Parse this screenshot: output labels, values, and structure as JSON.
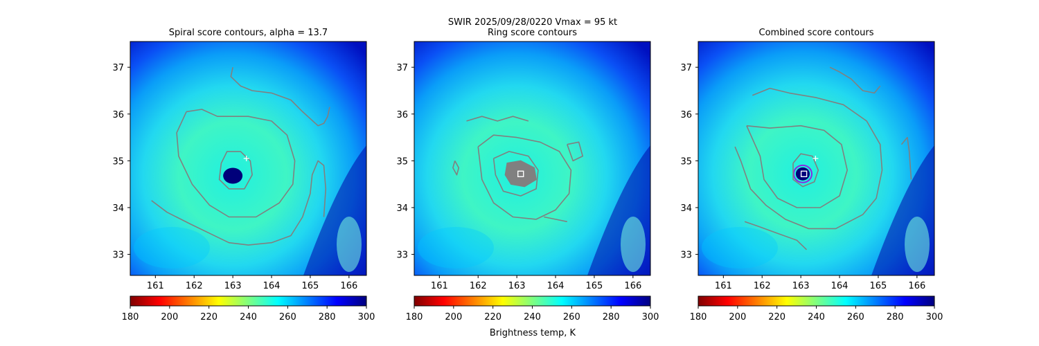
{
  "figure": {
    "suptitle": "SWIR  2025/09/28/0220    Vmax = 95 kt",
    "colorbar_label": "Brightness temp, K"
  },
  "colormap": {
    "name": "jet_r",
    "stops": [
      "#800000",
      "#ff0000",
      "#ffff00",
      "#00ffff",
      "#0000ff",
      "#000080"
    ],
    "contour_color": "#808080",
    "marker_color": "#ffffff"
  },
  "chart_data": [
    {
      "type": "heatmap",
      "title": "Spiral score contours, alpha = 13.7",
      "xlabel": "",
      "ylabel": "",
      "xlim": [
        160.35,
        166.45
      ],
      "ylim": [
        32.55,
        37.55
      ],
      "xticks": [
        "161",
        "162",
        "163",
        "164",
        "165",
        "166"
      ],
      "yticks": [
        "33",
        "34",
        "35",
        "36",
        "37"
      ],
      "colorbar": {
        "range": [
          180,
          300
        ],
        "ticks": [
          "180",
          "200",
          "220",
          "240",
          "260",
          "280",
          "300"
        ]
      },
      "eye_center": {
        "lon": 163.0,
        "lat": 34.68
      },
      "eye_shape": {
        "rlon": 0.25,
        "rlat": 0.17
      },
      "markers": [
        {
          "type": "plus",
          "lon": 163.35,
          "lat": 35.05
        }
      ],
      "contours": [
        [
          [
            163.0,
            37.0
          ],
          [
            162.95,
            36.8
          ],
          [
            163.2,
            36.6
          ],
          [
            163.5,
            36.5
          ],
          [
            164.0,
            36.45
          ],
          [
            164.5,
            36.3
          ],
          [
            164.8,
            36.05
          ],
          [
            165.2,
            35.75
          ],
          [
            165.35,
            35.8
          ],
          [
            165.45,
            35.95
          ],
          [
            165.5,
            36.15
          ]
        ],
        [
          [
            161.8,
            36.05
          ],
          [
            162.2,
            36.1
          ],
          [
            162.6,
            35.95
          ],
          [
            163.4,
            35.95
          ],
          [
            164.0,
            35.85
          ],
          [
            164.4,
            35.55
          ],
          [
            164.6,
            35.0
          ],
          [
            164.55,
            34.5
          ],
          [
            164.2,
            34.1
          ],
          [
            163.6,
            33.8
          ],
          [
            162.9,
            33.8
          ],
          [
            162.4,
            34.05
          ],
          [
            161.95,
            34.5
          ],
          [
            161.6,
            35.1
          ],
          [
            161.55,
            35.6
          ],
          [
            161.8,
            36.05
          ]
        ],
        [
          [
            162.7,
            34.95
          ],
          [
            162.85,
            35.2
          ],
          [
            163.2,
            35.2
          ],
          [
            163.45,
            35.0
          ],
          [
            163.5,
            34.7
          ],
          [
            163.3,
            34.4
          ],
          [
            162.9,
            34.4
          ],
          [
            162.65,
            34.6
          ],
          [
            162.7,
            34.95
          ]
        ],
        [
          [
            160.9,
            34.15
          ],
          [
            161.3,
            33.9
          ],
          [
            161.9,
            33.65
          ],
          [
            162.4,
            33.45
          ],
          [
            162.9,
            33.25
          ],
          [
            163.4,
            33.2
          ],
          [
            164.0,
            33.25
          ],
          [
            164.5,
            33.4
          ],
          [
            164.8,
            33.8
          ],
          [
            165.0,
            34.3
          ],
          [
            165.05,
            34.7
          ],
          [
            165.2,
            35.0
          ],
          [
            165.35,
            34.9
          ],
          [
            165.4,
            34.4
          ],
          [
            165.35,
            33.8
          ]
        ]
      ]
    },
    {
      "type": "heatmap",
      "title": "Ring score contours",
      "xlabel": "",
      "ylabel": "",
      "xlim": [
        160.35,
        166.45
      ],
      "ylim": [
        32.55,
        37.55
      ],
      "xticks": [
        "161",
        "162",
        "163",
        "164",
        "165",
        "166"
      ],
      "yticks": [
        "33",
        "34",
        "35",
        "36",
        "37"
      ],
      "colorbar": {
        "range": [
          180,
          300
        ],
        "ticks": [
          "180",
          "200",
          "220",
          "240",
          "260",
          "280",
          "300"
        ]
      },
      "eye_center": {
        "lon": 163.0,
        "lat": 34.68
      },
      "eye_shape": {
        "rlon": 0.25,
        "rlat": 0.17
      },
      "markers": [
        {
          "type": "square",
          "lon": 163.1,
          "lat": 34.72
        }
      ],
      "contours": [
        [
          [
            162.0,
            35.3
          ],
          [
            162.4,
            35.55
          ],
          [
            163.0,
            35.5
          ],
          [
            163.6,
            35.4
          ],
          [
            164.1,
            35.2
          ],
          [
            164.4,
            34.8
          ],
          [
            164.35,
            34.3
          ],
          [
            164.0,
            33.95
          ],
          [
            163.5,
            33.75
          ],
          [
            162.9,
            33.8
          ],
          [
            162.4,
            34.1
          ],
          [
            162.1,
            34.6
          ],
          [
            162.0,
            35.3
          ]
        ],
        [
          [
            162.4,
            35.05
          ],
          [
            162.8,
            35.2
          ],
          [
            163.3,
            35.1
          ],
          [
            163.55,
            34.8
          ],
          [
            163.5,
            34.4
          ],
          [
            163.1,
            34.25
          ],
          [
            162.65,
            34.35
          ],
          [
            162.45,
            34.7
          ],
          [
            162.4,
            35.05
          ]
        ],
        [
          [
            161.7,
            35.85
          ],
          [
            162.1,
            35.95
          ],
          [
            162.5,
            35.85
          ],
          [
            162.9,
            35.95
          ],
          [
            163.3,
            35.85
          ]
        ],
        [
          [
            163.7,
            33.8
          ],
          [
            164.0,
            33.75
          ],
          [
            164.3,
            33.7
          ]
        ],
        [
          [
            164.3,
            35.35
          ],
          [
            164.6,
            35.4
          ],
          [
            164.7,
            35.1
          ],
          [
            164.45,
            35.0
          ],
          [
            164.3,
            35.35
          ]
        ],
        [
          [
            161.4,
            35.0
          ],
          [
            161.5,
            34.85
          ],
          [
            161.45,
            34.7
          ],
          [
            161.35,
            34.85
          ],
          [
            161.4,
            35.0
          ]
        ]
      ],
      "filled_contours": [
        [
          [
            162.75,
            34.95
          ],
          [
            163.1,
            35.0
          ],
          [
            163.45,
            34.85
          ],
          [
            163.5,
            34.6
          ],
          [
            163.2,
            34.45
          ],
          [
            162.85,
            34.5
          ],
          [
            162.7,
            34.7
          ],
          [
            162.75,
            34.95
          ]
        ]
      ]
    },
    {
      "type": "heatmap",
      "title": "Combined score contours",
      "xlabel": "",
      "ylabel": "",
      "xlim": [
        160.35,
        166.45
      ],
      "ylim": [
        32.55,
        37.55
      ],
      "xticks": [
        "161",
        "162",
        "163",
        "164",
        "165",
        "166"
      ],
      "yticks": [
        "33",
        "34",
        "35",
        "36",
        "37"
      ],
      "colorbar": {
        "range": [
          180,
          300
        ],
        "ticks": [
          "180",
          "200",
          "220",
          "240",
          "260",
          "280",
          "300"
        ]
      },
      "eye_center": {
        "lon": 163.05,
        "lat": 34.72
      },
      "eye_shape": {
        "rlon": 0.18,
        "rlat": 0.14
      },
      "markers": [
        {
          "type": "plus",
          "lon": 163.38,
          "lat": 35.05
        },
        {
          "type": "square",
          "lon": 163.08,
          "lat": 34.72
        }
      ],
      "contours": [
        [
          [
            163.75,
            37.0
          ],
          [
            164.0,
            36.9
          ],
          [
            164.3,
            36.75
          ],
          [
            164.6,
            36.5
          ],
          [
            164.9,
            36.45
          ],
          [
            165.05,
            36.6
          ]
        ],
        [
          [
            161.75,
            36.4
          ],
          [
            162.2,
            36.55
          ],
          [
            162.7,
            36.45
          ],
          [
            163.4,
            36.35
          ],
          [
            164.1,
            36.2
          ],
          [
            164.7,
            35.85
          ],
          [
            165.05,
            35.35
          ],
          [
            165.1,
            34.8
          ],
          [
            164.95,
            34.2
          ],
          [
            164.6,
            33.85
          ],
          [
            163.9,
            33.55
          ],
          [
            163.2,
            33.55
          ],
          [
            162.6,
            33.75
          ],
          [
            162.1,
            34.05
          ],
          [
            161.7,
            34.4
          ],
          [
            161.45,
            35.0
          ],
          [
            161.3,
            35.3
          ]
        ],
        [
          [
            161.6,
            35.75
          ],
          [
            162.2,
            35.7
          ],
          [
            163.0,
            35.75
          ],
          [
            163.6,
            35.65
          ],
          [
            164.05,
            35.35
          ],
          [
            164.2,
            34.8
          ],
          [
            164.0,
            34.25
          ],
          [
            163.5,
            34.0
          ],
          [
            162.9,
            34.0
          ],
          [
            162.4,
            34.2
          ],
          [
            162.05,
            34.6
          ],
          [
            161.95,
            35.1
          ],
          [
            161.6,
            35.75
          ]
        ],
        [
          [
            162.8,
            34.95
          ],
          [
            163.0,
            35.15
          ],
          [
            163.3,
            35.1
          ],
          [
            163.45,
            34.8
          ],
          [
            163.35,
            34.55
          ],
          [
            163.05,
            34.45
          ],
          [
            162.8,
            34.6
          ],
          [
            162.8,
            34.95
          ]
        ],
        [
          [
            161.55,
            33.7
          ],
          [
            161.9,
            33.6
          ],
          [
            162.4,
            33.45
          ],
          [
            162.9,
            33.3
          ],
          [
            163.15,
            33.1
          ]
        ],
        [
          [
            165.6,
            35.35
          ],
          [
            165.75,
            35.5
          ],
          [
            165.8,
            35.2
          ],
          [
            165.85,
            34.6
          ]
        ]
      ]
    }
  ]
}
